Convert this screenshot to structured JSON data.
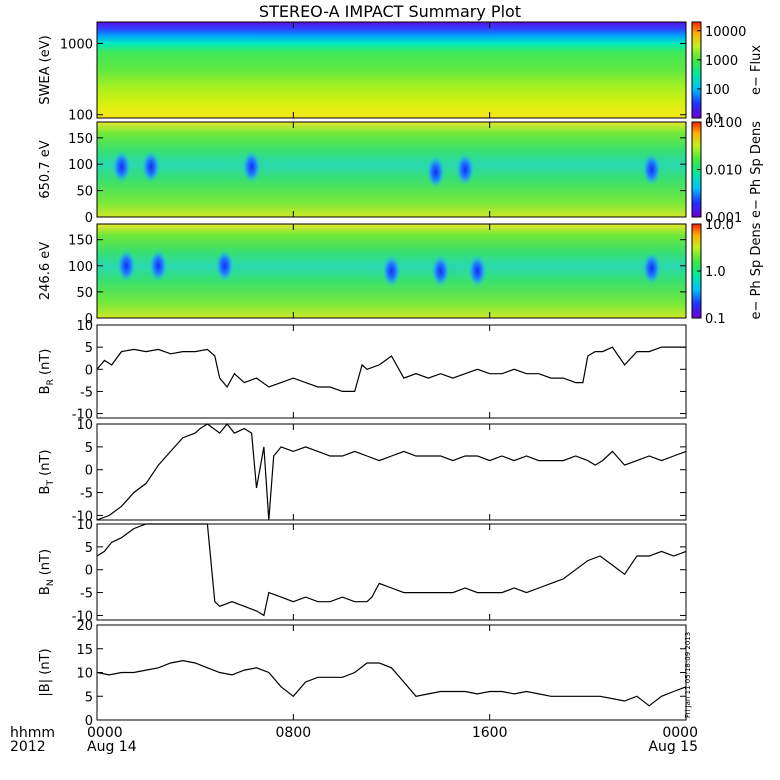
{
  "title": "STEREO-A IMPACT Summary Plot",
  "time_axis": {
    "label_top": "hhmm",
    "label_bottom": "2012",
    "ticks": [
      {
        "t": 0,
        "hhmm": "0000",
        "date": "Aug 14"
      },
      {
        "t": 8,
        "hhmm": "0800",
        "date": ""
      },
      {
        "t": 16,
        "hhmm": "1600",
        "date": ""
      },
      {
        "t": 24,
        "hhmm": "0000",
        "date": "Aug 15"
      }
    ],
    "range_hours": [
      0,
      24
    ]
  },
  "timestamp": "Fri Jan 11 05:18:09 2013",
  "colors": {
    "line": "#000000",
    "frame": "#000000"
  },
  "chart_data": [
    {
      "type": "heatmap",
      "ylabel": "SWEA (eV)",
      "yscale": "log",
      "ylim": [
        90,
        2000
      ],
      "yticks": [
        "100",
        "1000"
      ],
      "colorbar": {
        "label": "e− Flux",
        "scale": "log",
        "ticks": [
          "10",
          "100",
          "1000",
          "10000"
        ],
        "range": [
          10,
          20000
        ]
      },
      "description_rows": [
        {
          "energy_eV": 1800,
          "flux": 10
        },
        {
          "energy_eV": 1200,
          "flux": 100
        },
        {
          "energy_eV": 800,
          "flux": 1000
        },
        {
          "energy_eV": 500,
          "flux": 3000
        },
        {
          "energy_eV": 250,
          "flux": 5000
        },
        {
          "energy_eV": 120,
          "flux": 12000
        }
      ]
    },
    {
      "type": "heatmap",
      "ylabel": "650.7 eV",
      "ylim": [
        0,
        180
      ],
      "yticks": [
        "0",
        "50",
        "100",
        "150"
      ],
      "colorbar": {
        "label": "e− Ph Sp Dens",
        "scale": "log",
        "ticks": [
          "0.001",
          "0.010",
          "0.100"
        ],
        "range": [
          0.001,
          0.1
        ]
      },
      "low_density_patches": [
        {
          "t": 1.0,
          "pitch": 95,
          "level": 0.004
        },
        {
          "t": 2.2,
          "pitch": 95,
          "level": 0.005
        },
        {
          "t": 6.3,
          "pitch": 95,
          "level": 0.006
        },
        {
          "t": 13.8,
          "pitch": 85,
          "level": 0.004
        },
        {
          "t": 15.0,
          "pitch": 90,
          "level": 0.005
        },
        {
          "t": 22.6,
          "pitch": 90,
          "level": 0.002
        }
      ]
    },
    {
      "type": "heatmap",
      "ylabel": "246.6 eV",
      "ylim": [
        0,
        180
      ],
      "yticks": [
        "0",
        "50",
        "100",
        "150"
      ],
      "colorbar": {
        "label": "e− Ph Sp Dens",
        "scale": "log",
        "ticks": [
          "0.1",
          "1.0",
          "10.0"
        ],
        "range": [
          0.1,
          10
        ]
      },
      "low_density_patches": [
        {
          "t": 1.2,
          "pitch": 100,
          "level": 0.3
        },
        {
          "t": 2.5,
          "pitch": 100,
          "level": 0.4
        },
        {
          "t": 5.2,
          "pitch": 100,
          "level": 0.4
        },
        {
          "t": 12.0,
          "pitch": 90,
          "level": 0.3
        },
        {
          "t": 14.0,
          "pitch": 90,
          "level": 0.2
        },
        {
          "t": 15.5,
          "pitch": 90,
          "level": 0.3
        },
        {
          "t": 22.6,
          "pitch": 95,
          "level": 0.15
        }
      ]
    },
    {
      "type": "line",
      "ylabel_main": "B",
      "ylabel_sub": "R",
      "ylabel_unit": " (nT)",
      "ylim": [
        -11,
        10
      ],
      "yticks": [
        "-10",
        "-5",
        "0",
        "5",
        "10"
      ],
      "x": [
        0,
        0.3,
        0.6,
        1,
        1.5,
        2,
        2.5,
        3,
        3.5,
        4,
        4.5,
        4.8,
        5,
        5.3,
        5.6,
        6,
        6.5,
        7,
        7.5,
        8,
        8.5,
        9,
        9.5,
        10,
        10.5,
        10.8,
        11,
        11.5,
        12,
        12.5,
        13,
        13.5,
        14,
        14.5,
        15,
        15.5,
        16,
        16.5,
        17,
        17.5,
        18,
        18.5,
        19,
        19.5,
        19.8,
        20,
        20.3,
        20.6,
        21,
        21.5,
        22,
        22.5,
        23,
        23.5,
        24
      ],
      "y": [
        0,
        2,
        1,
        4,
        4.5,
        4,
        4.5,
        3.5,
        4,
        4,
        4.5,
        3,
        -2,
        -4,
        -1,
        -3,
        -2,
        -4,
        -3,
        -2,
        -3,
        -4,
        -4,
        -5,
        -5,
        1,
        0,
        1,
        3,
        -2,
        -1,
        -2,
        -1,
        -2,
        -1,
        0,
        -1,
        -1,
        0,
        -1,
        -1,
        -2,
        -2,
        -3,
        -3,
        3,
        4,
        4,
        5,
        1,
        4,
        4,
        5,
        5,
        5
      ]
    },
    {
      "type": "line",
      "ylabel_main": "B",
      "ylabel_sub": "T",
      "ylabel_unit": " (nT)",
      "ylim": [
        -11,
        10
      ],
      "yticks": [
        "-10",
        "-5",
        "0",
        "5",
        "10"
      ],
      "x": [
        0,
        0.5,
        1,
        1.5,
        2,
        2.5,
        3,
        3.5,
        4,
        4.2,
        4.5,
        5,
        5.3,
        5.6,
        6,
        6.3,
        6.5,
        6.8,
        7,
        7.2,
        7.5,
        8,
        8.5,
        9,
        9.5,
        10,
        10.5,
        11,
        11.5,
        12,
        12.5,
        13,
        13.5,
        14,
        14.5,
        15,
        15.5,
        16,
        16.5,
        17,
        17.5,
        18,
        18.5,
        19,
        19.5,
        20,
        20.3,
        20.6,
        21,
        21.5,
        22,
        22.5,
        23,
        23.5,
        24
      ],
      "y": [
        -11,
        -10,
        -8,
        -5,
        -3,
        1,
        4,
        7,
        8,
        9,
        10,
        8,
        10,
        8,
        9,
        8,
        -4,
        5,
        -11,
        3,
        5,
        4,
        5,
        4,
        3,
        3,
        4,
        3,
        2,
        3,
        4,
        3,
        3,
        3,
        2,
        3,
        3,
        2,
        3,
        2,
        3,
        2,
        2,
        2,
        3,
        2,
        1,
        2,
        4,
        1,
        2,
        3,
        2,
        3,
        4
      ]
    },
    {
      "type": "line",
      "ylabel_main": "B",
      "ylabel_sub": "N",
      "ylabel_unit": " (nT)",
      "ylim": [
        -11,
        10
      ],
      "yticks": [
        "-10",
        "-5",
        "0",
        "5",
        "10"
      ],
      "x": [
        0,
        0.3,
        0.6,
        1,
        1.5,
        2,
        2.5,
        3,
        3.5,
        4,
        4.2,
        4.5,
        4.8,
        5,
        5.5,
        6,
        6.5,
        6.8,
        7,
        7.5,
        8,
        8.5,
        9,
        9.5,
        10,
        10.5,
        11,
        11.2,
        11.5,
        12,
        12.5,
        13,
        13.5,
        14,
        14.5,
        15,
        15.5,
        16,
        16.5,
        17,
        17.5,
        18,
        18.5,
        19,
        19.5,
        20,
        20.5,
        21,
        21.5,
        22,
        22.5,
        23,
        23.5,
        24
      ],
      "y": [
        3,
        4,
        6,
        7,
        9,
        10,
        10,
        10,
        10,
        10,
        10,
        10,
        -7,
        -8,
        -7,
        -8,
        -9,
        -10,
        -5,
        -6,
        -7,
        -6,
        -7,
        -7,
        -6,
        -7,
        -7,
        -6,
        -3,
        -4,
        -5,
        -5,
        -5,
        -5,
        -5,
        -4,
        -5,
        -5,
        -5,
        -4,
        -5,
        -4,
        -3,
        -2,
        0,
        2,
        3,
        1,
        -1,
        3,
        3,
        4,
        3,
        4
      ]
    },
    {
      "type": "line",
      "ylabel_main": "|B|",
      "ylabel_sub": "",
      "ylabel_unit": " (nT)",
      "ylim": [
        0,
        20
      ],
      "yticks": [
        "0",
        "5",
        "10",
        "15",
        "20"
      ],
      "x": [
        0,
        0.5,
        1,
        1.5,
        2,
        2.5,
        3,
        3.5,
        4,
        4.5,
        5,
        5.5,
        6,
        6.5,
        7,
        7.5,
        8,
        8.5,
        9,
        9.5,
        10,
        10.5,
        11,
        11.5,
        12,
        12.5,
        13,
        13.5,
        14,
        14.5,
        15,
        15.5,
        16,
        16.5,
        17,
        17.5,
        18,
        18.5,
        19,
        19.5,
        20,
        20.5,
        21,
        21.5,
        22,
        22.5,
        23,
        23.5,
        24
      ],
      "y": [
        10,
        9.5,
        10,
        10,
        10.5,
        11,
        12,
        12.5,
        12,
        11,
        10,
        9.5,
        10.5,
        11,
        10,
        7,
        5,
        8,
        9,
        9,
        9,
        10,
        12,
        12,
        11,
        8,
        5,
        5.5,
        6,
        6,
        6,
        5.5,
        6,
        6,
        5.5,
        6,
        5.5,
        5,
        5,
        5,
        5,
        5,
        4.5,
        4,
        5,
        3,
        5,
        6,
        7
      ]
    }
  ]
}
